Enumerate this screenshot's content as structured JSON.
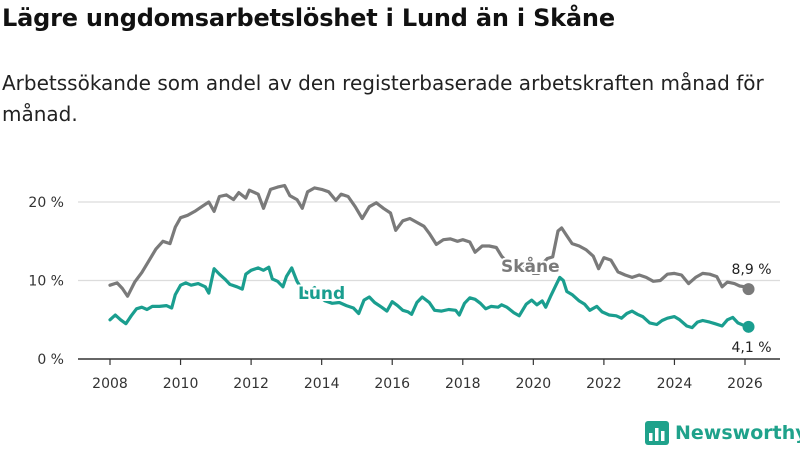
{
  "title": "Lägre ungdomsarbetslöshet i Lund än i Skåne",
  "subtitle": "Arbetssökande som andel av den registerbaserade arbetskraften månad för månad.",
  "brand": "Newsworthy",
  "colors": {
    "skane": "#7a7a7a",
    "lund": "#1a9e8f",
    "grid": "#dcdcdc",
    "axis": "#333333"
  },
  "chart_data": {
    "type": "line",
    "title": "Lägre ungdomsarbetslöshet i Lund än i Skåne",
    "xlabel": "",
    "ylabel": "",
    "xlim": [
      2007.5,
      2026.5
    ],
    "ylim": [
      0,
      22
    ],
    "y_ticks": [
      0,
      10,
      20
    ],
    "y_tick_labels": [
      "0 %",
      "10 %",
      "20 %"
    ],
    "x_ticks": [
      2008,
      2010,
      2012,
      2014,
      2016,
      2018,
      2020,
      2022,
      2024,
      2026
    ],
    "x_tick_labels": [
      "2008",
      "2010",
      "2012",
      "2014",
      "2016",
      "2018",
      "2020",
      "2022",
      "2024",
      "2026"
    ],
    "grid": true,
    "series": [
      {
        "name": "Skåne",
        "color": "#7a7a7a",
        "end_label": "8,9 %",
        "points": [
          [
            2008.0,
            9.4
          ],
          [
            2008.2,
            9.7
          ],
          [
            2008.35,
            9.0
          ],
          [
            2008.5,
            8.0
          ],
          [
            2008.7,
            9.8
          ],
          [
            2008.9,
            11.0
          ],
          [
            2009.1,
            12.5
          ],
          [
            2009.3,
            14.0
          ],
          [
            2009.5,
            15.0
          ],
          [
            2009.7,
            14.7
          ],
          [
            2009.85,
            16.8
          ],
          [
            2010.0,
            18.0
          ],
          [
            2010.2,
            18.3
          ],
          [
            2010.4,
            18.8
          ],
          [
            2010.6,
            19.4
          ],
          [
            2010.8,
            20.0
          ],
          [
            2010.95,
            18.8
          ],
          [
            2011.1,
            20.7
          ],
          [
            2011.3,
            20.9
          ],
          [
            2011.5,
            20.3
          ],
          [
            2011.65,
            21.2
          ],
          [
            2011.85,
            20.5
          ],
          [
            2011.95,
            21.5
          ],
          [
            2012.2,
            21.0
          ],
          [
            2012.35,
            19.2
          ],
          [
            2012.55,
            21.6
          ],
          [
            2012.75,
            21.9
          ],
          [
            2012.95,
            22.1
          ],
          [
            2013.1,
            20.8
          ],
          [
            2013.3,
            20.3
          ],
          [
            2013.45,
            19.2
          ],
          [
            2013.6,
            21.3
          ],
          [
            2013.8,
            21.8
          ],
          [
            2014.0,
            21.6
          ],
          [
            2014.2,
            21.3
          ],
          [
            2014.4,
            20.2
          ],
          [
            2014.55,
            21.0
          ],
          [
            2014.75,
            20.7
          ],
          [
            2014.95,
            19.4
          ],
          [
            2015.15,
            17.9
          ],
          [
            2015.35,
            19.4
          ],
          [
            2015.55,
            19.9
          ],
          [
            2015.75,
            19.2
          ],
          [
            2015.95,
            18.6
          ],
          [
            2016.1,
            16.4
          ],
          [
            2016.3,
            17.6
          ],
          [
            2016.5,
            17.9
          ],
          [
            2016.7,
            17.4
          ],
          [
            2016.9,
            16.9
          ],
          [
            2017.05,
            16.0
          ],
          [
            2017.25,
            14.6
          ],
          [
            2017.45,
            15.2
          ],
          [
            2017.65,
            15.3
          ],
          [
            2017.85,
            15.0
          ],
          [
            2018.0,
            15.2
          ],
          [
            2018.2,
            14.9
          ],
          [
            2018.35,
            13.6
          ],
          [
            2018.55,
            14.4
          ],
          [
            2018.75,
            14.4
          ],
          [
            2018.95,
            14.2
          ],
          [
            2019.1,
            13.1
          ],
          [
            2019.3,
            12.2
          ],
          [
            2019.45,
            11.3
          ],
          [
            2019.65,
            11.9
          ],
          [
            2019.85,
            12.0
          ],
          [
            2020.0,
            10.9
          ],
          [
            2020.15,
            10.9
          ],
          [
            2020.25,
            12.1
          ],
          [
            2020.4,
            12.8
          ],
          [
            2020.55,
            13.0
          ],
          [
            2020.7,
            16.3
          ],
          [
            2020.8,
            16.7
          ],
          [
            2020.95,
            15.7
          ],
          [
            2021.1,
            14.7
          ],
          [
            2021.3,
            14.4
          ],
          [
            2021.5,
            13.9
          ],
          [
            2021.7,
            13.1
          ],
          [
            2021.85,
            11.5
          ],
          [
            2022.0,
            12.9
          ],
          [
            2022.2,
            12.6
          ],
          [
            2022.4,
            11.1
          ],
          [
            2022.6,
            10.7
          ],
          [
            2022.8,
            10.4
          ],
          [
            2023.0,
            10.7
          ],
          [
            2023.2,
            10.4
          ],
          [
            2023.4,
            9.9
          ],
          [
            2023.6,
            10.0
          ],
          [
            2023.8,
            10.8
          ],
          [
            2024.0,
            10.9
          ],
          [
            2024.2,
            10.7
          ],
          [
            2024.4,
            9.6
          ],
          [
            2024.6,
            10.4
          ],
          [
            2024.8,
            10.9
          ],
          [
            2025.0,
            10.8
          ],
          [
            2025.2,
            10.5
          ],
          [
            2025.35,
            9.2
          ],
          [
            2025.5,
            9.8
          ],
          [
            2025.7,
            9.6
          ],
          [
            2025.85,
            9.3
          ],
          [
            2026.0,
            9.2
          ],
          [
            2026.1,
            8.9
          ]
        ]
      },
      {
        "name": "Lund",
        "color": "#1a9e8f",
        "end_label": "4,1 %",
        "points": [
          [
            2008.0,
            5.0
          ],
          [
            2008.15,
            5.6
          ],
          [
            2008.3,
            5.0
          ],
          [
            2008.45,
            4.5
          ],
          [
            2008.6,
            5.5
          ],
          [
            2008.75,
            6.4
          ],
          [
            2008.9,
            6.6
          ],
          [
            2009.05,
            6.3
          ],
          [
            2009.2,
            6.7
          ],
          [
            2009.4,
            6.7
          ],
          [
            2009.6,
            6.8
          ],
          [
            2009.75,
            6.5
          ],
          [
            2009.85,
            8.2
          ],
          [
            2010.0,
            9.4
          ],
          [
            2010.15,
            9.7
          ],
          [
            2010.3,
            9.4
          ],
          [
            2010.5,
            9.6
          ],
          [
            2010.7,
            9.2
          ],
          [
            2010.8,
            8.4
          ],
          [
            2010.95,
            11.5
          ],
          [
            2011.1,
            10.8
          ],
          [
            2011.25,
            10.2
          ],
          [
            2011.4,
            9.5
          ],
          [
            2011.6,
            9.2
          ],
          [
            2011.75,
            8.9
          ],
          [
            2011.85,
            10.8
          ],
          [
            2012.0,
            11.3
          ],
          [
            2012.2,
            11.6
          ],
          [
            2012.35,
            11.3
          ],
          [
            2012.5,
            11.7
          ],
          [
            2012.6,
            10.2
          ],
          [
            2012.75,
            9.9
          ],
          [
            2012.9,
            9.2
          ],
          [
            2013.0,
            10.5
          ],
          [
            2013.15,
            11.6
          ],
          [
            2013.3,
            9.9
          ],
          [
            2013.45,
            8.8
          ],
          [
            2013.6,
            8.4
          ],
          [
            2013.8,
            9.1
          ],
          [
            2013.95,
            7.9
          ],
          [
            2014.1,
            7.4
          ],
          [
            2014.3,
            7.1
          ],
          [
            2014.5,
            7.2
          ],
          [
            2014.7,
            6.8
          ],
          [
            2014.9,
            6.5
          ],
          [
            2015.05,
            5.8
          ],
          [
            2015.2,
            7.5
          ],
          [
            2015.35,
            7.9
          ],
          [
            2015.5,
            7.2
          ],
          [
            2015.7,
            6.6
          ],
          [
            2015.85,
            6.1
          ],
          [
            2016.0,
            7.3
          ],
          [
            2016.15,
            6.8
          ],
          [
            2016.3,
            6.2
          ],
          [
            2016.45,
            6.0
          ],
          [
            2016.55,
            5.7
          ],
          [
            2016.7,
            7.2
          ],
          [
            2016.85,
            7.9
          ],
          [
            2017.05,
            7.2
          ],
          [
            2017.2,
            6.2
          ],
          [
            2017.4,
            6.1
          ],
          [
            2017.6,
            6.3
          ],
          [
            2017.8,
            6.2
          ],
          [
            2017.9,
            5.6
          ],
          [
            2018.05,
            7.1
          ],
          [
            2018.2,
            7.8
          ],
          [
            2018.35,
            7.6
          ],
          [
            2018.5,
            7.1
          ],
          [
            2018.65,
            6.4
          ],
          [
            2018.8,
            6.7
          ],
          [
            2019.0,
            6.6
          ],
          [
            2019.1,
            6.9
          ],
          [
            2019.25,
            6.6
          ],
          [
            2019.45,
            5.9
          ],
          [
            2019.6,
            5.5
          ],
          [
            2019.8,
            7.0
          ],
          [
            2019.95,
            7.5
          ],
          [
            2020.1,
            6.9
          ],
          [
            2020.25,
            7.4
          ],
          [
            2020.35,
            6.6
          ],
          [
            2020.5,
            8.1
          ],
          [
            2020.65,
            9.5
          ],
          [
            2020.75,
            10.4
          ],
          [
            2020.85,
            10.0
          ],
          [
            2020.95,
            8.6
          ],
          [
            2021.1,
            8.2
          ],
          [
            2021.3,
            7.4
          ],
          [
            2021.45,
            7.0
          ],
          [
            2021.6,
            6.2
          ],
          [
            2021.8,
            6.7
          ],
          [
            2021.95,
            6.0
          ],
          [
            2022.15,
            5.6
          ],
          [
            2022.35,
            5.5
          ],
          [
            2022.5,
            5.2
          ],
          [
            2022.65,
            5.8
          ],
          [
            2022.8,
            6.1
          ],
          [
            2022.95,
            5.7
          ],
          [
            2023.1,
            5.4
          ],
          [
            2023.3,
            4.6
          ],
          [
            2023.5,
            4.4
          ],
          [
            2023.65,
            4.9
          ],
          [
            2023.8,
            5.2
          ],
          [
            2024.0,
            5.4
          ],
          [
            2024.15,
            5.0
          ],
          [
            2024.35,
            4.2
          ],
          [
            2024.5,
            4.0
          ],
          [
            2024.65,
            4.7
          ],
          [
            2024.8,
            4.9
          ],
          [
            2025.0,
            4.7
          ],
          [
            2025.15,
            4.5
          ],
          [
            2025.35,
            4.2
          ],
          [
            2025.5,
            5.0
          ],
          [
            2025.65,
            5.3
          ],
          [
            2025.8,
            4.6
          ],
          [
            2025.95,
            4.3
          ],
          [
            2026.1,
            4.1
          ]
        ]
      }
    ]
  }
}
